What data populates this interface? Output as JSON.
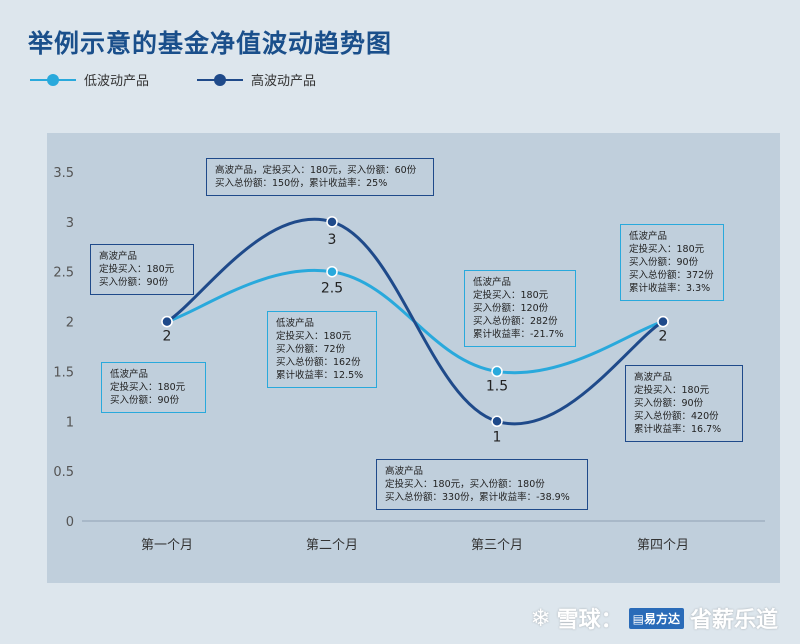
{
  "title": "举例示意的基金净值波动趋势图",
  "colors": {
    "low": "#29a9dc",
    "high": "#1f4a8a",
    "axis": "#555555"
  },
  "chart_data": {
    "type": "line",
    "categories": [
      "第一个月",
      "第二个月",
      "第三个月",
      "第四个月"
    ],
    "ylim": [
      0,
      3.5
    ],
    "yticks": [
      "0",
      "0.5",
      "1",
      "1.5",
      "2",
      "2.5",
      "3",
      "3.5"
    ],
    "series": [
      {
        "name": "低波动产品",
        "key": "low",
        "values": [
          2,
          2.5,
          1.5,
          2
        ],
        "labels": [
          "2",
          "2.5",
          "1.5",
          "2"
        ]
      },
      {
        "name": "高波动产品",
        "key": "high",
        "values": [
          2,
          3,
          1,
          2
        ],
        "labels": [
          "2",
          "3",
          "1",
          "2"
        ]
      }
    ],
    "annotations": [
      {
        "series": "high",
        "month": 1,
        "lines": [
          "高波产品",
          "定投买入：180元",
          "买入份额：90份"
        ]
      },
      {
        "series": "low",
        "month": 1,
        "lines": [
          "低波产品",
          "定投买入：180元",
          "买入份额：90份"
        ]
      },
      {
        "series": "high",
        "month": 2,
        "lines": [
          "高波产品，定投买入：180元，买入份额：60份",
          "买入总份额：150份，累计收益率：25%"
        ]
      },
      {
        "series": "low",
        "month": 2,
        "lines": [
          "低波产品",
          "定投买入：180元",
          "买入份额：72份",
          "买入总份额：162份",
          "累计收益率：12.5%"
        ]
      },
      {
        "series": "low",
        "month": 3,
        "lines": [
          "低波产品",
          "定投买入：180元",
          "买入份额：120份",
          "买入总份额：282份",
          "累计收益率：-21.7%"
        ]
      },
      {
        "series": "high",
        "month": 3,
        "lines": [
          "高波产品",
          "定投买入：180元，买入份额：180份",
          "买入总份额：330份，累计收益率：-38.9%"
        ]
      },
      {
        "series": "low",
        "month": 4,
        "lines": [
          "低波产品",
          "定投买入：180元",
          "买入份额：90份",
          "买入总份额：372份",
          "累计收益率：3.3%"
        ]
      },
      {
        "series": "high",
        "month": 4,
        "lines": [
          "高波产品",
          "定投买入：180元",
          "买入份额：90份",
          "买入总份额：420份",
          "累计收益率：16.7%"
        ]
      }
    ]
  },
  "watermark": {
    "platform": "雪球：",
    "badge": "▤易方达",
    "author": "省薪乐道",
    "icon": "snowball-icon"
  }
}
